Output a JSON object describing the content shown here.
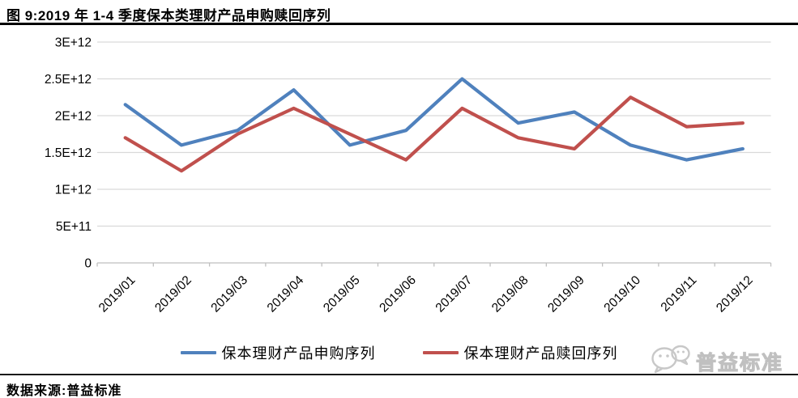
{
  "title": "图 9:2019 年 1-4 季度保本类理财产品申购赎回序列",
  "source_note": "数据来源:普益标准",
  "watermark": {
    "text": "普益标准",
    "icon": "wechat-icon",
    "color": "#c8c8c8"
  },
  "chart_data": {
    "type": "line",
    "title": "2019 年 1-4 季度保本类理财产品申购赎回序列",
    "x": [
      "2019/01",
      "2019/02",
      "2019/03",
      "2019/04",
      "2019/05",
      "2019/06",
      "2019/07",
      "2019/08",
      "2019/09",
      "2019/10",
      "2019/11",
      "2019/12"
    ],
    "series": [
      {
        "name": "保本理财产品申购序列",
        "color": "#4F81BD",
        "values": [
          2150000000000.0,
          1600000000000.0,
          1800000000000.0,
          2350000000000.0,
          1600000000000.0,
          1800000000000.0,
          2500000000000.0,
          1900000000000.0,
          2050000000000.0,
          1600000000000.0,
          1400000000000.0,
          1550000000000.0
        ]
      },
      {
        "name": "保本理财产品赎回序列",
        "color": "#C0504D",
        "values": [
          1700000000000.0,
          1250000000000.0,
          1750000000000.0,
          2100000000000.0,
          1750000000000.0,
          1400000000000.0,
          2100000000000.0,
          1700000000000.0,
          1550000000000.0,
          2250000000000.0,
          1850000000000.0,
          1900000000000.0
        ]
      }
    ],
    "xlabel": "",
    "ylabel": "",
    "ylim": [
      0,
      3000000000000.0
    ],
    "yticks": {
      "values": [
        0,
        500000000000.0,
        1000000000000.0,
        1500000000000.0,
        2000000000000.0,
        2500000000000.0,
        3000000000000.0
      ],
      "labels": [
        "0",
        "5E+11",
        "1E+12",
        "1.5E+12",
        "2E+12",
        "2.5E+12",
        "3E+12"
      ]
    },
    "grid": true,
    "gridline_color": "#D9D9D9",
    "axis_color": "#BFBFBF",
    "legend_position": "bottom"
  }
}
